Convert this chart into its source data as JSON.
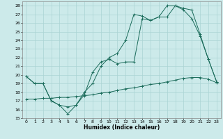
{
  "xlabel": "Humidex (Indice chaleur)",
  "bg_color": "#cceaea",
  "line_color": "#1a6b5a",
  "grid_color": "#aad4d4",
  "ylim": [
    15,
    28.5
  ],
  "xlim": [
    -0.5,
    23.5
  ],
  "yticks": [
    15,
    16,
    17,
    18,
    19,
    20,
    21,
    22,
    23,
    24,
    25,
    26,
    27,
    28
  ],
  "xticks": [
    0,
    1,
    2,
    3,
    4,
    5,
    6,
    7,
    8,
    9,
    10,
    11,
    12,
    13,
    14,
    15,
    16,
    17,
    18,
    19,
    20,
    21,
    22,
    23
  ],
  "line1_x": [
    0,
    1,
    2,
    3,
    4,
    5,
    6,
    7,
    8,
    9,
    10,
    11,
    12,
    13,
    14,
    15,
    16,
    17,
    18,
    19,
    20,
    21,
    22,
    23
  ],
  "line1_y": [
    19.8,
    19.0,
    19.0,
    17.0,
    16.5,
    15.5,
    16.5,
    18.0,
    19.0,
    21.0,
    22.0,
    22.5,
    24.0,
    27.0,
    26.8,
    26.3,
    26.7,
    26.7,
    28.0,
    27.7,
    27.5,
    24.7,
    21.8,
    19.2
  ],
  "line2_x": [
    0,
    1,
    2,
    3,
    4,
    5,
    6,
    7,
    8,
    9,
    10,
    11,
    12,
    13,
    14,
    15,
    16,
    17,
    18,
    19,
    20,
    21,
    22,
    23
  ],
  "line2_y": [
    19.8,
    19.0,
    19.0,
    17.0,
    16.5,
    16.3,
    16.5,
    17.7,
    20.3,
    21.5,
    21.8,
    21.3,
    21.5,
    21.5,
    26.5,
    26.3,
    26.7,
    28.0,
    28.0,
    27.5,
    26.5,
    24.5,
    21.8,
    19.2
  ],
  "line3_x": [
    0,
    1,
    2,
    3,
    4,
    5,
    6,
    7,
    8,
    9,
    10,
    11,
    12,
    13,
    14,
    15,
    16,
    17,
    18,
    19,
    20,
    21,
    22,
    23
  ],
  "line3_y": [
    17.2,
    17.2,
    17.3,
    17.3,
    17.4,
    17.4,
    17.5,
    17.6,
    17.7,
    17.9,
    18.0,
    18.2,
    18.4,
    18.5,
    18.7,
    18.9,
    19.0,
    19.2,
    19.4,
    19.6,
    19.7,
    19.7,
    19.5,
    19.1
  ]
}
